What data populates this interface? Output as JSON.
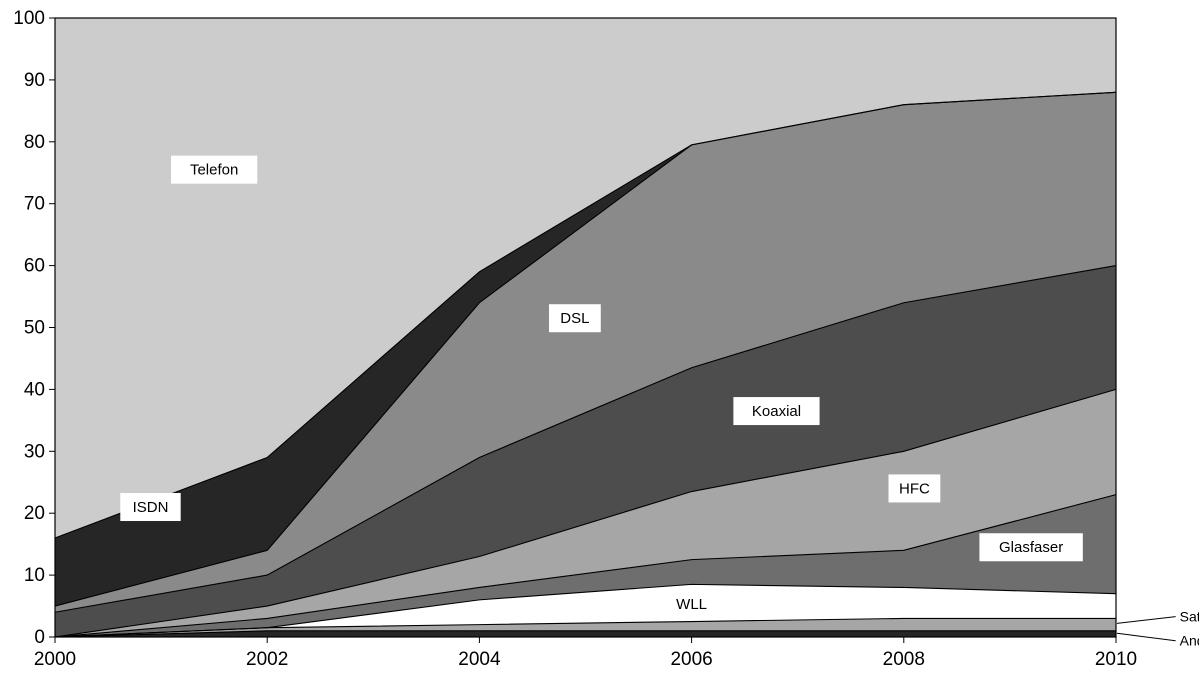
{
  "chart_data": {
    "type": "area",
    "stacked": true,
    "title": "",
    "xlabel": "",
    "ylabel": "",
    "xlim": [
      2000,
      2010
    ],
    "ylim": [
      0,
      100
    ],
    "x": [
      2000,
      2002,
      2004,
      2006,
      2008,
      2010
    ],
    "x_ticks": [
      "2000",
      "2002",
      "2004",
      "2006",
      "2008",
      "2010"
    ],
    "y_ticks": [
      "0",
      "10",
      "20",
      "30",
      "40",
      "50",
      "60",
      "70",
      "80",
      "90",
      "100"
    ],
    "grid": false,
    "legend": "none (series labeled inside areas)",
    "series": [
      {
        "name": "Andere",
        "values": [
          0,
          1,
          1,
          1,
          1,
          1
        ],
        "color": "#262626"
      },
      {
        "name": "Satellit",
        "values": [
          0,
          0.5,
          1,
          1.5,
          2,
          2
        ],
        "color": "#a6a6a6"
      },
      {
        "name": "WLL",
        "values": [
          0,
          0,
          4,
          6,
          5,
          4
        ],
        "color": "#ffffff"
      },
      {
        "name": "Glasfaser",
        "values": [
          0,
          1.5,
          2,
          4,
          6,
          16
        ],
        "color": "#6e6e6e"
      },
      {
        "name": "HFC",
        "values": [
          0,
          2,
          5,
          11,
          16,
          17
        ],
        "color": "#a6a6a6"
      },
      {
        "name": "Koaxial",
        "values": [
          4,
          5,
          16,
          20,
          24,
          20
        ],
        "color": "#4d4d4d"
      },
      {
        "name": "DSL",
        "values": [
          1,
          4,
          25,
          36,
          32,
          28
        ],
        "color": "#8a8a8a"
      },
      {
        "name": "ISDN",
        "values": [
          11,
          15,
          5,
          0,
          0,
          0
        ],
        "color": "#262626"
      },
      {
        "name": "Telefon",
        "values": [
          84,
          71,
          41,
          20.5,
          14,
          12
        ],
        "color": "#cccccc"
      }
    ],
    "labels": [
      {
        "text": "Telefon",
        "x": 2001.5,
        "y": 75.5,
        "boxed": true
      },
      {
        "text": "ISDN",
        "x": 2000.9,
        "y": 21,
        "boxed": true
      },
      {
        "text": "DSL",
        "x": 2004.9,
        "y": 51.5,
        "boxed": true
      },
      {
        "text": "Koaxial",
        "x": 2006.8,
        "y": 36.5,
        "boxed": true
      },
      {
        "text": "HFC",
        "x": 2008.1,
        "y": 24,
        "boxed": true
      },
      {
        "text": "Glasfaser",
        "x": 2009.2,
        "y": 14.5,
        "boxed": true
      },
      {
        "text": "WLL",
        "x": 2006.0,
        "y": 5.3,
        "boxed": false
      },
      {
        "text": "Satellit",
        "x": 2010.6,
        "y": 3.3,
        "boxed": false,
        "leader_to": [
          2010,
          2.2
        ]
      },
      {
        "text": "Andere",
        "x": 2010.6,
        "y": -0.6,
        "boxed": false,
        "leader_to": [
          2010,
          0.6
        ]
      }
    ]
  }
}
